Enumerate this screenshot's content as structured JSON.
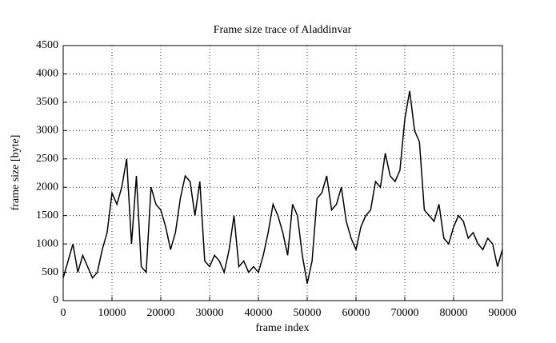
{
  "chart_data": {
    "type": "line",
    "title": "Frame size trace of Aladdinvar",
    "x_label": "frame index",
    "y_label": "frame size [byte]",
    "x": [
      0,
      1000,
      2000,
      3000,
      4000,
      5000,
      6000,
      7000,
      8000,
      9000,
      10000,
      11000,
      12000,
      13000,
      14000,
      15000,
      16000,
      17000,
      18000,
      19000,
      20000,
      21000,
      22000,
      23000,
      24000,
      25000,
      26000,
      27000,
      28000,
      29000,
      30000,
      31000,
      32000,
      33000,
      34000,
      35000,
      36000,
      37000,
      38000,
      39000,
      40000,
      41000,
      42000,
      43000,
      44000,
      45000,
      46000,
      47000,
      48000,
      49000,
      50000,
      51000,
      52000,
      53000,
      54000,
      55000,
      56000,
      57000,
      58000,
      59000,
      60000,
      61000,
      62000,
      63000,
      64000,
      65000,
      66000,
      67000,
      68000,
      69000,
      70000,
      71000,
      72000,
      73000,
      74000,
      75000,
      76000,
      77000,
      78000,
      79000,
      80000,
      81000,
      82000,
      83000,
      84000,
      85000,
      86000,
      87000,
      88000,
      89000,
      90000
    ],
    "series": [
      {
        "name": "frame size",
        "color": "#000000",
        "values": [
          400,
          700,
          1000,
          500,
          800,
          600,
          400,
          500,
          900,
          1200,
          1900,
          1700,
          2000,
          2500,
          1000,
          2200,
          600,
          500,
          2000,
          1700,
          1600,
          1300,
          900,
          1200,
          1800,
          2200,
          2100,
          1500,
          2100,
          700,
          600,
          800,
          700,
          500,
          900,
          1500,
          600,
          700,
          500,
          600,
          500,
          800,
          1200,
          1700,
          1500,
          1200,
          800,
          1700,
          1500,
          800,
          300,
          700,
          1800,
          1900,
          2200,
          1600,
          1700,
          2000,
          1400,
          1100,
          900,
          1300,
          1500,
          1600,
          2100,
          2000,
          2600,
          2200,
          2100,
          2300,
          3200,
          3700,
          3000,
          2800,
          1600,
          1500,
          1400,
          1700,
          1100,
          1000,
          1300,
          1500,
          1400,
          1100,
          1200,
          1000,
          900,
          1100,
          1000,
          600,
          900
        ]
      }
    ],
    "xlim": [
      0,
      90000
    ],
    "xticks": [
      0,
      10000,
      20000,
      30000,
      40000,
      50000,
      60000,
      70000,
      80000,
      90000
    ],
    "ylim": [
      0,
      4500
    ],
    "yticks": [
      0,
      500,
      1000,
      1500,
      2000,
      2500,
      3000,
      3500,
      4000,
      4500
    ],
    "grid": true
  }
}
